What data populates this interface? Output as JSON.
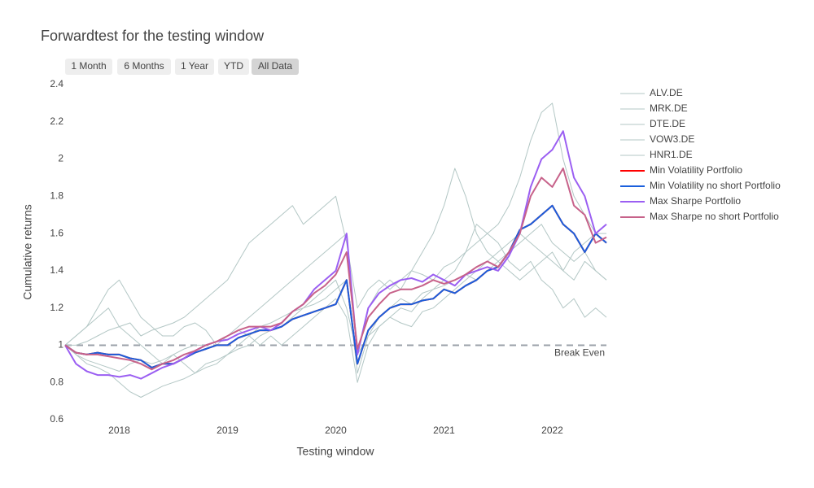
{
  "chart_data": {
    "type": "line",
    "title": "Forwardtest for the testing window",
    "xlabel": "Testing window",
    "ylabel": "Cumulative returns",
    "range_buttons": [
      "1 Month",
      "6 Months",
      "1 Year",
      "YTD",
      "All Data"
    ],
    "active_button": 4,
    "break_even": {
      "value": 1,
      "label": "Break Even"
    },
    "xlim": [
      2017.5,
      2022.5
    ],
    "xticks": [
      2018,
      2019,
      2020,
      2021,
      2022
    ],
    "ylim": [
      0.6,
      2.4
    ],
    "yticks": [
      0.6,
      0.8,
      1,
      1.2,
      1.4,
      1.6,
      1.8,
      2,
      2.2,
      2.4
    ],
    "x": [
      2017.5,
      2017.6,
      2017.7,
      2017.8,
      2017.9,
      2018.0,
      2018.1,
      2018.2,
      2018.3,
      2018.4,
      2018.5,
      2018.6,
      2018.7,
      2018.8,
      2018.9,
      2019.0,
      2019.1,
      2019.2,
      2019.3,
      2019.4,
      2019.5,
      2019.6,
      2019.7,
      2019.8,
      2019.9,
      2020.0,
      2020.1,
      2020.2,
      2020.3,
      2020.4,
      2020.5,
      2020.6,
      2020.7,
      2020.8,
      2020.9,
      2021.0,
      2021.1,
      2021.2,
      2021.3,
      2021.4,
      2021.5,
      2021.6,
      2021.7,
      2021.8,
      2021.9,
      2022.0,
      2022.1,
      2022.2,
      2022.3,
      2022.4,
      2022.5
    ],
    "series": [
      {
        "name": "ALV.DE",
        "color": "#b3c7c5",
        "width": 1,
        "values": [
          1.0,
          1.05,
          1.1,
          1.2,
          1.3,
          1.35,
          1.25,
          1.15,
          1.1,
          1.05,
          1.05,
          1.1,
          1.12,
          1.08,
          1.0,
          1.05,
          1.1,
          1.15,
          1.2,
          1.25,
          1.3,
          1.35,
          1.4,
          1.45,
          1.5,
          1.55,
          1.6,
          0.95,
          1.2,
          1.3,
          1.35,
          1.3,
          1.4,
          1.5,
          1.6,
          1.75,
          1.95,
          1.8,
          1.6,
          1.5,
          1.45,
          1.4,
          1.35,
          1.4,
          1.45,
          1.5,
          1.4,
          1.35,
          1.45,
          1.4,
          1.35
        ]
      },
      {
        "name": "MRK.DE",
        "color": "#b3c7c5",
        "width": 1,
        "values": [
          1.0,
          1.0,
          1.02,
          1.05,
          1.08,
          1.1,
          1.12,
          1.05,
          1.08,
          1.1,
          1.12,
          1.15,
          1.2,
          1.25,
          1.3,
          1.35,
          1.45,
          1.55,
          1.6,
          1.65,
          1.7,
          1.75,
          1.65,
          1.7,
          1.75,
          1.8,
          1.55,
          1.2,
          1.3,
          1.35,
          1.3,
          1.35,
          1.4,
          1.38,
          1.35,
          1.42,
          1.45,
          1.5,
          1.55,
          1.6,
          1.65,
          1.75,
          1.9,
          2.1,
          2.25,
          2.3,
          2.0,
          1.8,
          1.7,
          1.6,
          1.6
        ]
      },
      {
        "name": "DTE.DE",
        "color": "#b3c7c5",
        "width": 1,
        "values": [
          1.0,
          0.95,
          0.92,
          0.9,
          0.88,
          0.86,
          0.9,
          0.92,
          0.9,
          0.92,
          0.95,
          0.98,
          1.0,
          1.0,
          1.02,
          1.05,
          1.08,
          1.05,
          1.1,
          1.12,
          1.15,
          1.18,
          1.2,
          1.25,
          1.3,
          1.35,
          1.2,
          0.95,
          1.05,
          1.1,
          1.15,
          1.12,
          1.1,
          1.18,
          1.2,
          1.25,
          1.3,
          1.35,
          1.4,
          1.45,
          1.5,
          1.55,
          1.6,
          1.55,
          1.5,
          1.45,
          1.4,
          1.5,
          1.55,
          1.6,
          1.55
        ]
      },
      {
        "name": "VOW3.DE",
        "color": "#b3c7c5",
        "width": 1,
        "values": [
          1.0,
          1.05,
          1.1,
          1.15,
          1.2,
          1.1,
          1.05,
          1.0,
          0.95,
          0.9,
          0.95,
          0.9,
          0.85,
          0.88,
          0.9,
          0.95,
          1.0,
          1.05,
          1.0,
          1.05,
          1.0,
          1.05,
          1.1,
          1.15,
          1.2,
          1.25,
          1.15,
          0.8,
          1.0,
          1.1,
          1.15,
          1.2,
          1.18,
          1.25,
          1.3,
          1.35,
          1.4,
          1.5,
          1.65,
          1.6,
          1.55,
          1.45,
          1.4,
          1.45,
          1.35,
          1.3,
          1.2,
          1.25,
          1.15,
          1.2,
          1.15
        ]
      },
      {
        "name": "HNR1.DE",
        "color": "#b3c7c5",
        "width": 1,
        "values": [
          1.0,
          0.95,
          0.9,
          0.88,
          0.85,
          0.8,
          0.75,
          0.72,
          0.75,
          0.78,
          0.8,
          0.82,
          0.85,
          0.9,
          0.92,
          0.95,
          0.98,
          1.0,
          1.05,
          1.08,
          1.1,
          1.15,
          1.2,
          1.22,
          1.25,
          1.3,
          1.35,
          0.85,
          1.05,
          1.15,
          1.2,
          1.25,
          1.22,
          1.28,
          1.3,
          1.32,
          1.35,
          1.38,
          1.35,
          1.4,
          1.45,
          1.5,
          1.55,
          1.6,
          1.65,
          1.55,
          1.5,
          1.45,
          1.5,
          1.4,
          1.35
        ]
      },
      {
        "name": "Min Volatility Portfolio",
        "color": "#ff0000",
        "width": 2,
        "values": [
          1.0,
          0.96,
          0.95,
          0.96,
          0.95,
          0.95,
          0.93,
          0.92,
          0.88,
          0.9,
          0.9,
          0.93,
          0.96,
          0.98,
          1.0,
          1.0,
          1.04,
          1.06,
          1.08,
          1.08,
          1.1,
          1.14,
          1.16,
          1.18,
          1.2,
          1.22,
          1.35,
          0.9,
          1.08,
          1.15,
          1.2,
          1.22,
          1.22,
          1.24,
          1.25,
          1.3,
          1.28,
          1.32,
          1.35,
          1.4,
          1.42,
          1.5,
          1.62,
          1.65,
          1.7,
          1.75,
          1.65,
          1.6,
          1.5,
          1.6,
          1.55
        ]
      },
      {
        "name": "Min Volatility no short Portfolio",
        "color": "#1a5fdc",
        "width": 2,
        "values": [
          1.0,
          0.96,
          0.95,
          0.96,
          0.95,
          0.95,
          0.93,
          0.92,
          0.88,
          0.9,
          0.9,
          0.93,
          0.96,
          0.98,
          1.0,
          1.0,
          1.04,
          1.06,
          1.08,
          1.08,
          1.1,
          1.14,
          1.16,
          1.18,
          1.2,
          1.22,
          1.35,
          0.9,
          1.08,
          1.15,
          1.2,
          1.22,
          1.22,
          1.24,
          1.25,
          1.3,
          1.28,
          1.32,
          1.35,
          1.4,
          1.42,
          1.5,
          1.62,
          1.65,
          1.7,
          1.75,
          1.65,
          1.6,
          1.5,
          1.6,
          1.55
        ]
      },
      {
        "name": "Max Sharpe Portfolio",
        "color": "#9b5ff2",
        "width": 2,
        "values": [
          1.0,
          0.9,
          0.86,
          0.84,
          0.84,
          0.83,
          0.84,
          0.82,
          0.85,
          0.88,
          0.9,
          0.93,
          0.97,
          1.0,
          1.02,
          1.03,
          1.06,
          1.08,
          1.1,
          1.08,
          1.12,
          1.18,
          1.22,
          1.3,
          1.35,
          1.4,
          1.6,
          0.95,
          1.2,
          1.28,
          1.32,
          1.35,
          1.36,
          1.34,
          1.38,
          1.35,
          1.32,
          1.38,
          1.4,
          1.42,
          1.4,
          1.48,
          1.6,
          1.85,
          2.0,
          2.05,
          2.15,
          1.9,
          1.8,
          1.6,
          1.65
        ]
      },
      {
        "name": "Max Sharpe no short Portfolio",
        "color": "#c7628a",
        "width": 2,
        "values": [
          1.0,
          0.96,
          0.95,
          0.95,
          0.94,
          0.93,
          0.92,
          0.9,
          0.87,
          0.9,
          0.92,
          0.95,
          0.97,
          1.0,
          1.02,
          1.05,
          1.08,
          1.1,
          1.1,
          1.1,
          1.12,
          1.18,
          1.22,
          1.28,
          1.32,
          1.38,
          1.5,
          0.98,
          1.15,
          1.22,
          1.28,
          1.3,
          1.3,
          1.32,
          1.35,
          1.33,
          1.35,
          1.38,
          1.42,
          1.45,
          1.42,
          1.5,
          1.6,
          1.8,
          1.9,
          1.85,
          1.95,
          1.75,
          1.7,
          1.55,
          1.58
        ]
      }
    ]
  }
}
